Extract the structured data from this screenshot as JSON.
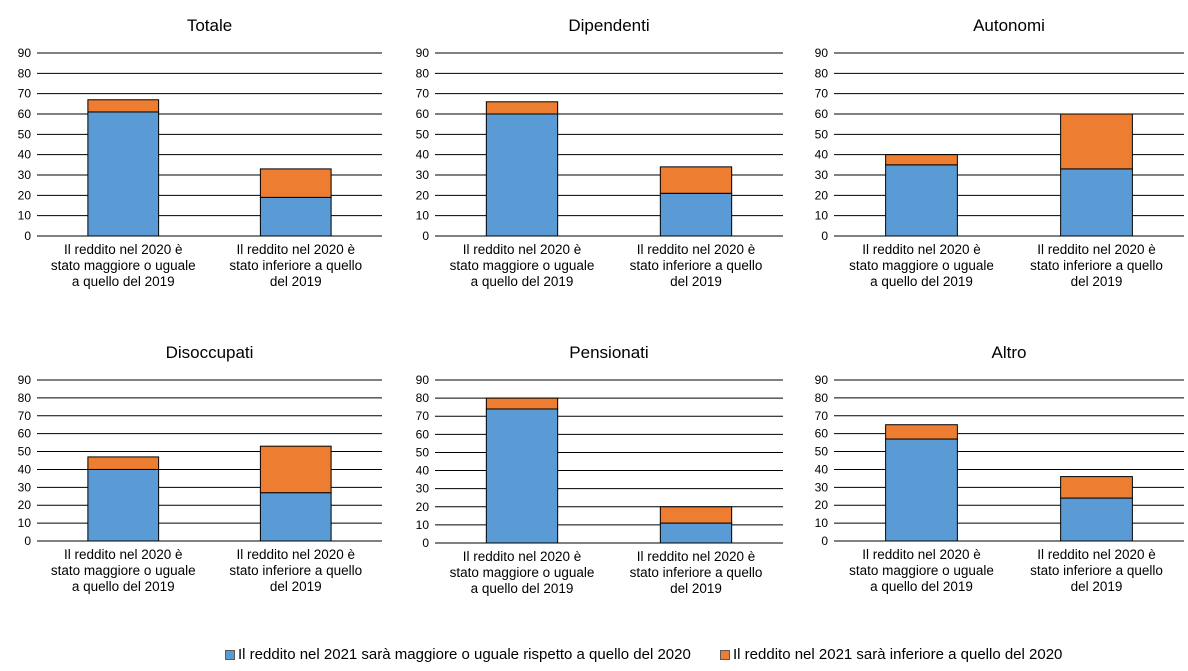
{
  "colors": {
    "blue": "#5b9bd5",
    "orange": "#ed7d31",
    "grid": "#000000",
    "bar_edge": "#000000"
  },
  "categories": [
    "Il reddito nel 2020 è stato maggiore o uguale a quello del 2019",
    "Il reddito nel 2020 è stato inferiore a quello del 2019"
  ],
  "legend": [
    {
      "label": "Il reddito nel 2021 sarà maggiore o uguale rispetto a quello del 2020",
      "color": "#5b9bd5"
    },
    {
      "label": "Il reddito nel 2021 sarà inferiore a quello del 2020",
      "color": "#ed7d31"
    }
  ],
  "chart_data": [
    {
      "type": "bar",
      "stacked": true,
      "title": "Totale",
      "ylim": [
        0,
        90
      ],
      "yticks": [
        0,
        10,
        20,
        30,
        40,
        50,
        60,
        70,
        80,
        90
      ],
      "grid": true,
      "categories": [
        [
          "Il reddito nel 2020 è",
          "stato maggiore o uguale",
          "a quello del 2019"
        ],
        [
          "Il reddito nel 2020 è",
          "stato inferiore a quello",
          "del 2019"
        ]
      ],
      "series": [
        {
          "name": "Il reddito nel 2021 sarà maggiore o uguale rispetto a quello del 2020",
          "values": [
            61,
            19
          ]
        },
        {
          "name": "Il reddito nel 2021 sarà inferiore a quello del 2020",
          "values": [
            6,
            14
          ]
        }
      ]
    },
    {
      "type": "bar",
      "stacked": true,
      "title": "Dipendenti",
      "ylim": [
        0,
        90
      ],
      "yticks": [
        0,
        10,
        20,
        30,
        40,
        50,
        60,
        70,
        80,
        90
      ],
      "grid": true,
      "categories": [
        [
          "Il reddito nel 2020 è",
          "stato maggiore o uguale",
          "a quello del 2019"
        ],
        [
          "Il reddito nel 2020 è",
          "stato inferiore a quello",
          "del 2019"
        ]
      ],
      "series": [
        {
          "name": "Il reddito nel 2021 sarà maggiore o uguale rispetto a quello del 2020",
          "values": [
            60,
            21
          ]
        },
        {
          "name": "Il reddito nel 2021 sarà inferiore a quello del 2020",
          "values": [
            6,
            13
          ]
        }
      ]
    },
    {
      "type": "bar",
      "stacked": true,
      "title": "Autonomi",
      "ylim": [
        0,
        90
      ],
      "yticks": [
        0,
        10,
        20,
        30,
        40,
        50,
        60,
        70,
        80,
        90
      ],
      "grid": true,
      "categories": [
        [
          "Il reddito nel 2020 è",
          "stato maggiore o uguale",
          "a quello del 2019"
        ],
        [
          "Il reddito nel 2020 è",
          "stato inferiore a quello",
          "del 2019"
        ]
      ],
      "series": [
        {
          "name": "Il reddito nel 2021 sarà maggiore o uguale rispetto a quello del 2020",
          "values": [
            35,
            33
          ]
        },
        {
          "name": "Il reddito nel 2021 sarà inferiore a quello del 2020",
          "values": [
            5,
            27
          ]
        }
      ]
    },
    {
      "type": "bar",
      "stacked": true,
      "title": "Disoccupati",
      "ylim": [
        0,
        90
      ],
      "yticks": [
        0,
        10,
        20,
        30,
        40,
        50,
        60,
        70,
        80,
        90
      ],
      "grid": true,
      "categories": [
        [
          "Il reddito nel 2020 è",
          "stato maggiore o uguale",
          "a quello del 2019"
        ],
        [
          "Il reddito nel 2020 è",
          "stato inferiore a quello",
          "del 2019"
        ]
      ],
      "series": [
        {
          "name": "Il reddito nel 2021 sarà maggiore o uguale rispetto a quello del 2020",
          "values": [
            40,
            27
          ]
        },
        {
          "name": "Il reddito nel 2021 sarà inferiore a quello del 2020",
          "values": [
            7,
            26
          ]
        }
      ]
    },
    {
      "type": "bar",
      "stacked": true,
      "title": "Pensionati",
      "ylim": [
        0,
        90
      ],
      "yticks": [
        0,
        10,
        20,
        30,
        40,
        50,
        60,
        70,
        80,
        90
      ],
      "grid": true,
      "categories": [
        [
          "Il reddito nel 2020 è",
          "stato maggiore o uguale",
          "a quello del 2019"
        ],
        [
          "Il reddito nel 2020 è",
          "stato inferiore a quello",
          "del 2019"
        ]
      ],
      "series": [
        {
          "name": "Il reddito nel 2021 sarà maggiore o uguale rispetto a quello del 2020",
          "values": [
            74,
            11
          ]
        },
        {
          "name": "Il reddito nel 2021 sarà inferiore a quello del 2020",
          "values": [
            6,
            9
          ]
        }
      ]
    },
    {
      "type": "bar",
      "stacked": true,
      "title": "Altro",
      "ylim": [
        0,
        90
      ],
      "yticks": [
        0,
        10,
        20,
        30,
        40,
        50,
        60,
        70,
        80,
        90
      ],
      "grid": true,
      "categories": [
        [
          "Il reddito nel 2020 è",
          "stato maggiore o uguale",
          "a quello del 2019"
        ],
        [
          "Il reddito nel 2020 è",
          "stato inferiore a quello",
          "del 2019"
        ]
      ],
      "series": [
        {
          "name": "Il reddito nel 2021 sarà maggiore o uguale rispetto a quello del 2020",
          "values": [
            57,
            24
          ]
        },
        {
          "name": "Il reddito nel 2021 sarà inferiore a quello del 2020",
          "values": [
            8,
            12
          ]
        }
      ]
    }
  ]
}
